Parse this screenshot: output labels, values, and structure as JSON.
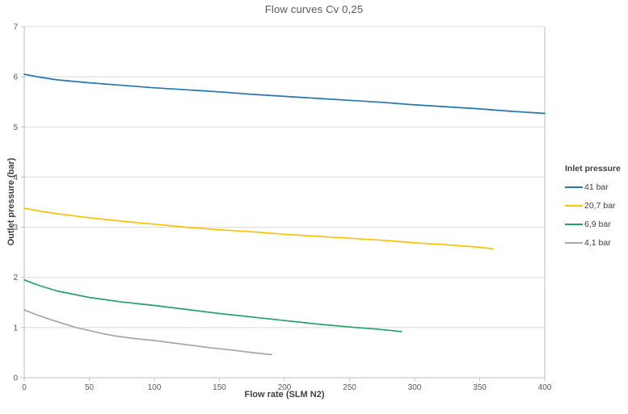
{
  "chart_data": {
    "type": "line",
    "title": "Flow curves Cv 0,25",
    "xlabel": "Flow rate (SLM N2)",
    "ylabel": "Outlet pressure (bar)",
    "xlim": [
      0,
      400
    ],
    "ylim": [
      0,
      7
    ],
    "x_ticks": [
      0,
      50,
      100,
      150,
      200,
      250,
      300,
      350,
      400
    ],
    "y_ticks": [
      0,
      1,
      2,
      3,
      4,
      5,
      6,
      7
    ],
    "grid": "horizontal-only",
    "legend_position": "right",
    "legend_title": "Inlet pressure",
    "series": [
      {
        "name": "41 bar",
        "color": "#1F77B4",
        "points": [
          [
            0,
            6.05
          ],
          [
            10,
            6.0
          ],
          [
            25,
            5.94
          ],
          [
            50,
            5.88
          ],
          [
            75,
            5.83
          ],
          [
            100,
            5.78
          ],
          [
            125,
            5.74
          ],
          [
            150,
            5.7
          ],
          [
            175,
            5.65
          ],
          [
            200,
            5.61
          ],
          [
            225,
            5.57
          ],
          [
            250,
            5.53
          ],
          [
            275,
            5.49
          ],
          [
            300,
            5.44
          ],
          [
            325,
            5.4
          ],
          [
            350,
            5.36
          ],
          [
            375,
            5.31
          ],
          [
            400,
            5.27
          ]
        ]
      },
      {
        "name": "20,7 bar",
        "color": "#FFC000",
        "points": [
          [
            0,
            3.38
          ],
          [
            10,
            3.33
          ],
          [
            25,
            3.27
          ],
          [
            50,
            3.19
          ],
          [
            75,
            3.12
          ],
          [
            100,
            3.06
          ],
          [
            125,
            3.0
          ],
          [
            150,
            2.95
          ],
          [
            175,
            2.91
          ],
          [
            200,
            2.86
          ],
          [
            225,
            2.82
          ],
          [
            250,
            2.78
          ],
          [
            275,
            2.74
          ],
          [
            300,
            2.69
          ],
          [
            325,
            2.65
          ],
          [
            350,
            2.6
          ],
          [
            360,
            2.57
          ]
        ]
      },
      {
        "name": "6,9 bar",
        "color": "#21A366",
        "points": [
          [
            0,
            1.95
          ],
          [
            10,
            1.85
          ],
          [
            25,
            1.73
          ],
          [
            50,
            1.6
          ],
          [
            75,
            1.51
          ],
          [
            100,
            1.44
          ],
          [
            125,
            1.36
          ],
          [
            150,
            1.28
          ],
          [
            175,
            1.21
          ],
          [
            200,
            1.14
          ],
          [
            225,
            1.07
          ],
          [
            250,
            1.01
          ],
          [
            270,
            0.97
          ],
          [
            290,
            0.92
          ]
        ]
      },
      {
        "name": "4,1 bar",
        "color": "#A6A6A6",
        "points": [
          [
            0,
            1.35
          ],
          [
            10,
            1.25
          ],
          [
            20,
            1.16
          ],
          [
            30,
            1.08
          ],
          [
            40,
            1.0
          ],
          [
            50,
            0.94
          ],
          [
            60,
            0.88
          ],
          [
            70,
            0.83
          ],
          [
            85,
            0.78
          ],
          [
            100,
            0.74
          ],
          [
            115,
            0.69
          ],
          [
            130,
            0.64
          ],
          [
            145,
            0.59
          ],
          [
            160,
            0.55
          ],
          [
            175,
            0.5
          ],
          [
            190,
            0.46
          ]
        ]
      }
    ],
    "style_colors": {
      "gridline": "#D9D9D9",
      "plot_border": "#BFBFBF",
      "axis_line": "#BFBFBF",
      "tick_label": "#595959",
      "title_text": "#595959",
      "axis_title_text": "#404040",
      "background": "#FFFFFF"
    }
  }
}
